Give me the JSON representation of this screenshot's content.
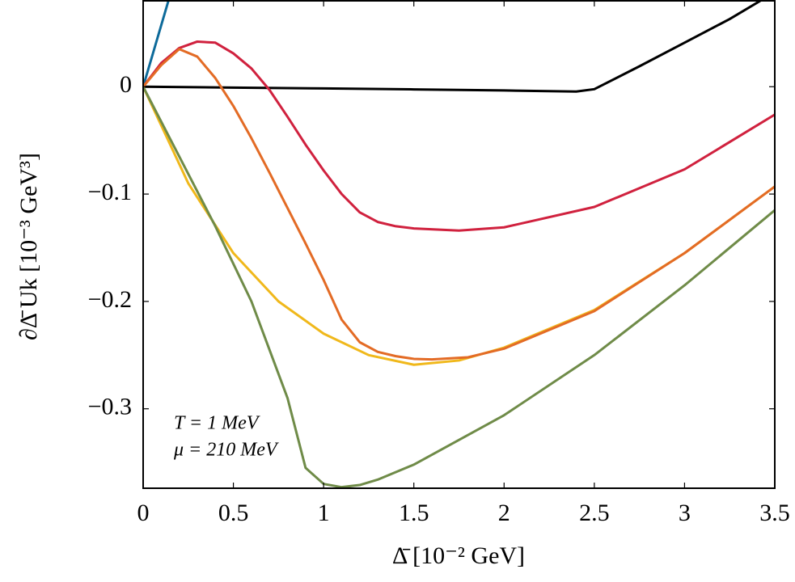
{
  "chart_data": {
    "type": "line",
    "xlabel": "Δ̄ [10⁻² GeV]",
    "ylabel": "∂Δ̄ Uk [10⁻³ GeV³]",
    "annotations": [
      "T = 1 MeV",
      "μ = 210 MeV"
    ],
    "xlim": [
      0,
      3.5
    ],
    "ylim": [
      -0.374,
      0.08
    ],
    "xticks": [
      0,
      0.5,
      1,
      1.5,
      2,
      2.5,
      3,
      3.5
    ],
    "yticks": [
      {
        "value": -0.3,
        "label": "−0.3"
      },
      {
        "value": -0.2,
        "label": "−0.2"
      },
      {
        "value": -0.1,
        "label": "−0.1"
      },
      0
    ],
    "grid": false,
    "series": [
      {
        "color": "#0d6a9a",
        "x": [
          0,
          0.14
        ],
        "values": [
          0,
          0.08
        ]
      },
      {
        "color": "#000000",
        "x": [
          0,
          0.5,
          1,
          1.5,
          2,
          2.4,
          2.5,
          2.75,
          3,
          3.25,
          3.42
        ],
        "values": [
          0,
          -0.0008,
          -0.0016,
          -0.0025,
          -0.0035,
          -0.0045,
          -0.0023,
          0.019,
          0.041,
          0.063,
          0.08
        ]
      },
      {
        "color": "#d0213e",
        "x": [
          0,
          0.1,
          0.2,
          0.3,
          0.4,
          0.5,
          0.6,
          0.7,
          0.8,
          0.9,
          1.0,
          1.1,
          1.2,
          1.3,
          1.4,
          1.5,
          1.75,
          2.0,
          2.5,
          3.0,
          3.5
        ],
        "values": [
          0,
          0.022,
          0.036,
          0.042,
          0.041,
          0.031,
          0.017,
          -0.003,
          -0.028,
          -0.054,
          -0.078,
          -0.1,
          -0.117,
          -0.126,
          -0.13,
          -0.132,
          -0.134,
          -0.131,
          -0.112,
          -0.077,
          -0.026
        ]
      },
      {
        "color": "#f0b81b",
        "x": [
          0,
          0.25,
          0.5,
          0.75,
          1.0,
          1.25,
          1.5,
          1.75,
          2.0,
          2.5,
          3.0,
          3.5
        ],
        "values": [
          0,
          -0.09,
          -0.155,
          -0.2,
          -0.23,
          -0.25,
          -0.259,
          -0.255,
          -0.243,
          -0.208,
          -0.155,
          -0.093
        ]
      },
      {
        "color": "#e36b25",
        "x": [
          0,
          0.1,
          0.2,
          0.3,
          0.4,
          0.5,
          0.6,
          0.7,
          0.8,
          0.9,
          1.0,
          1.1,
          1.2,
          1.3,
          1.4,
          1.5,
          1.6,
          1.8,
          2.0,
          2.5,
          3.0,
          3.5
        ],
        "values": [
          0,
          0.02,
          0.035,
          0.028,
          0.008,
          -0.018,
          -0.048,
          -0.08,
          -0.113,
          -0.146,
          -0.18,
          -0.217,
          -0.238,
          -0.247,
          -0.251,
          -0.2535,
          -0.254,
          -0.252,
          -0.244,
          -0.209,
          -0.155,
          -0.093
        ]
      },
      {
        "color": "#6f8b48",
        "x": [
          0,
          0.2,
          0.4,
          0.6,
          0.8,
          0.9,
          1.0,
          1.1,
          1.2,
          1.3,
          1.5,
          2.0,
          2.5,
          3.0,
          3.5
        ],
        "values": [
          0,
          -0.065,
          -0.13,
          -0.2,
          -0.29,
          -0.355,
          -0.37,
          -0.373,
          -0.371,
          -0.366,
          -0.352,
          -0.306,
          -0.25,
          -0.185,
          -0.115
        ]
      }
    ]
  }
}
